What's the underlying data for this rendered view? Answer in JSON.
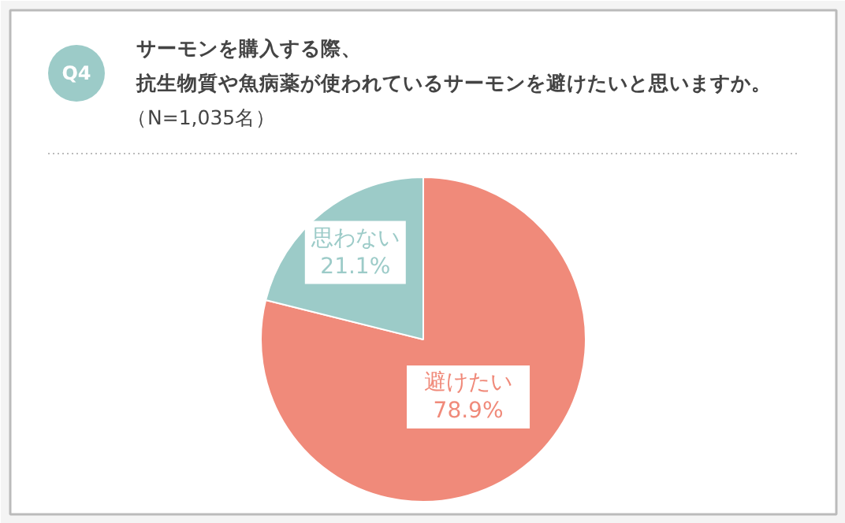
{
  "chart_data": {
    "type": "pie",
    "title": "サーモンを購入する際、",
    "subtitle": "抗生物質や魚病薬が使われているサーモンを避けたいと思いますか。",
    "annotations": [
      "Q4",
      "（N=1,035名）"
    ],
    "categories": [
      "避けたい",
      "思わない"
    ],
    "values": [
      78.9,
      21.1
    ],
    "colors": [
      "#f08a7a",
      "#9ccbc8"
    ],
    "value_labels": [
      "78.9%",
      "21.1%"
    ]
  }
}
